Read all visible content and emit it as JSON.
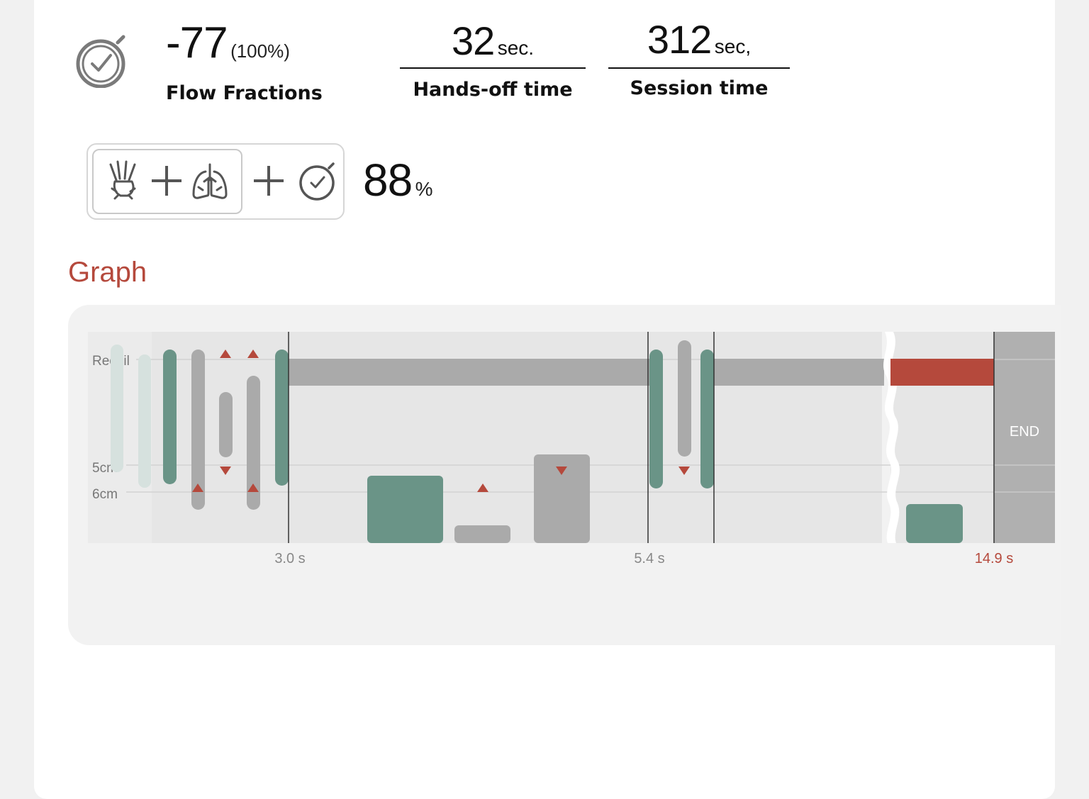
{
  "stats": {
    "flow_fraction_value": "-77",
    "flow_fraction_percent": "(100%)",
    "flow_fraction_label": "Flow Fractions",
    "hands_off_value": "32",
    "hands_off_unit": "sec.",
    "hands_off_label": "Hands-off time",
    "session_value": "312",
    "session_unit": "sec,",
    "session_label": "Session time"
  },
  "combined": {
    "icons": [
      "hands-compression-icon",
      "plus-icon",
      "lungs-icon",
      "plus-icon",
      "stopwatch-icon"
    ],
    "value": "88",
    "unit": "%"
  },
  "graph": {
    "title": "Graph"
  },
  "chart_data": {
    "type": "bar",
    "y_labels": [
      "Recoil",
      "5cm",
      "6cm"
    ],
    "x_ticks": [
      {
        "label": "3.0 s",
        "value": 3.0
      },
      {
        "label": "5.4 s",
        "value": 5.4
      },
      {
        "label": "14.9 s",
        "value": 14.9
      }
    ],
    "end_label": "END",
    "colors": {
      "good": "#6a9487",
      "neutral": "#aaaaaa",
      "faded": "#d6e1de",
      "alert": "#b5493c",
      "panel": "#e6e6e6",
      "end_zone": "#b0b0b0"
    }
  }
}
